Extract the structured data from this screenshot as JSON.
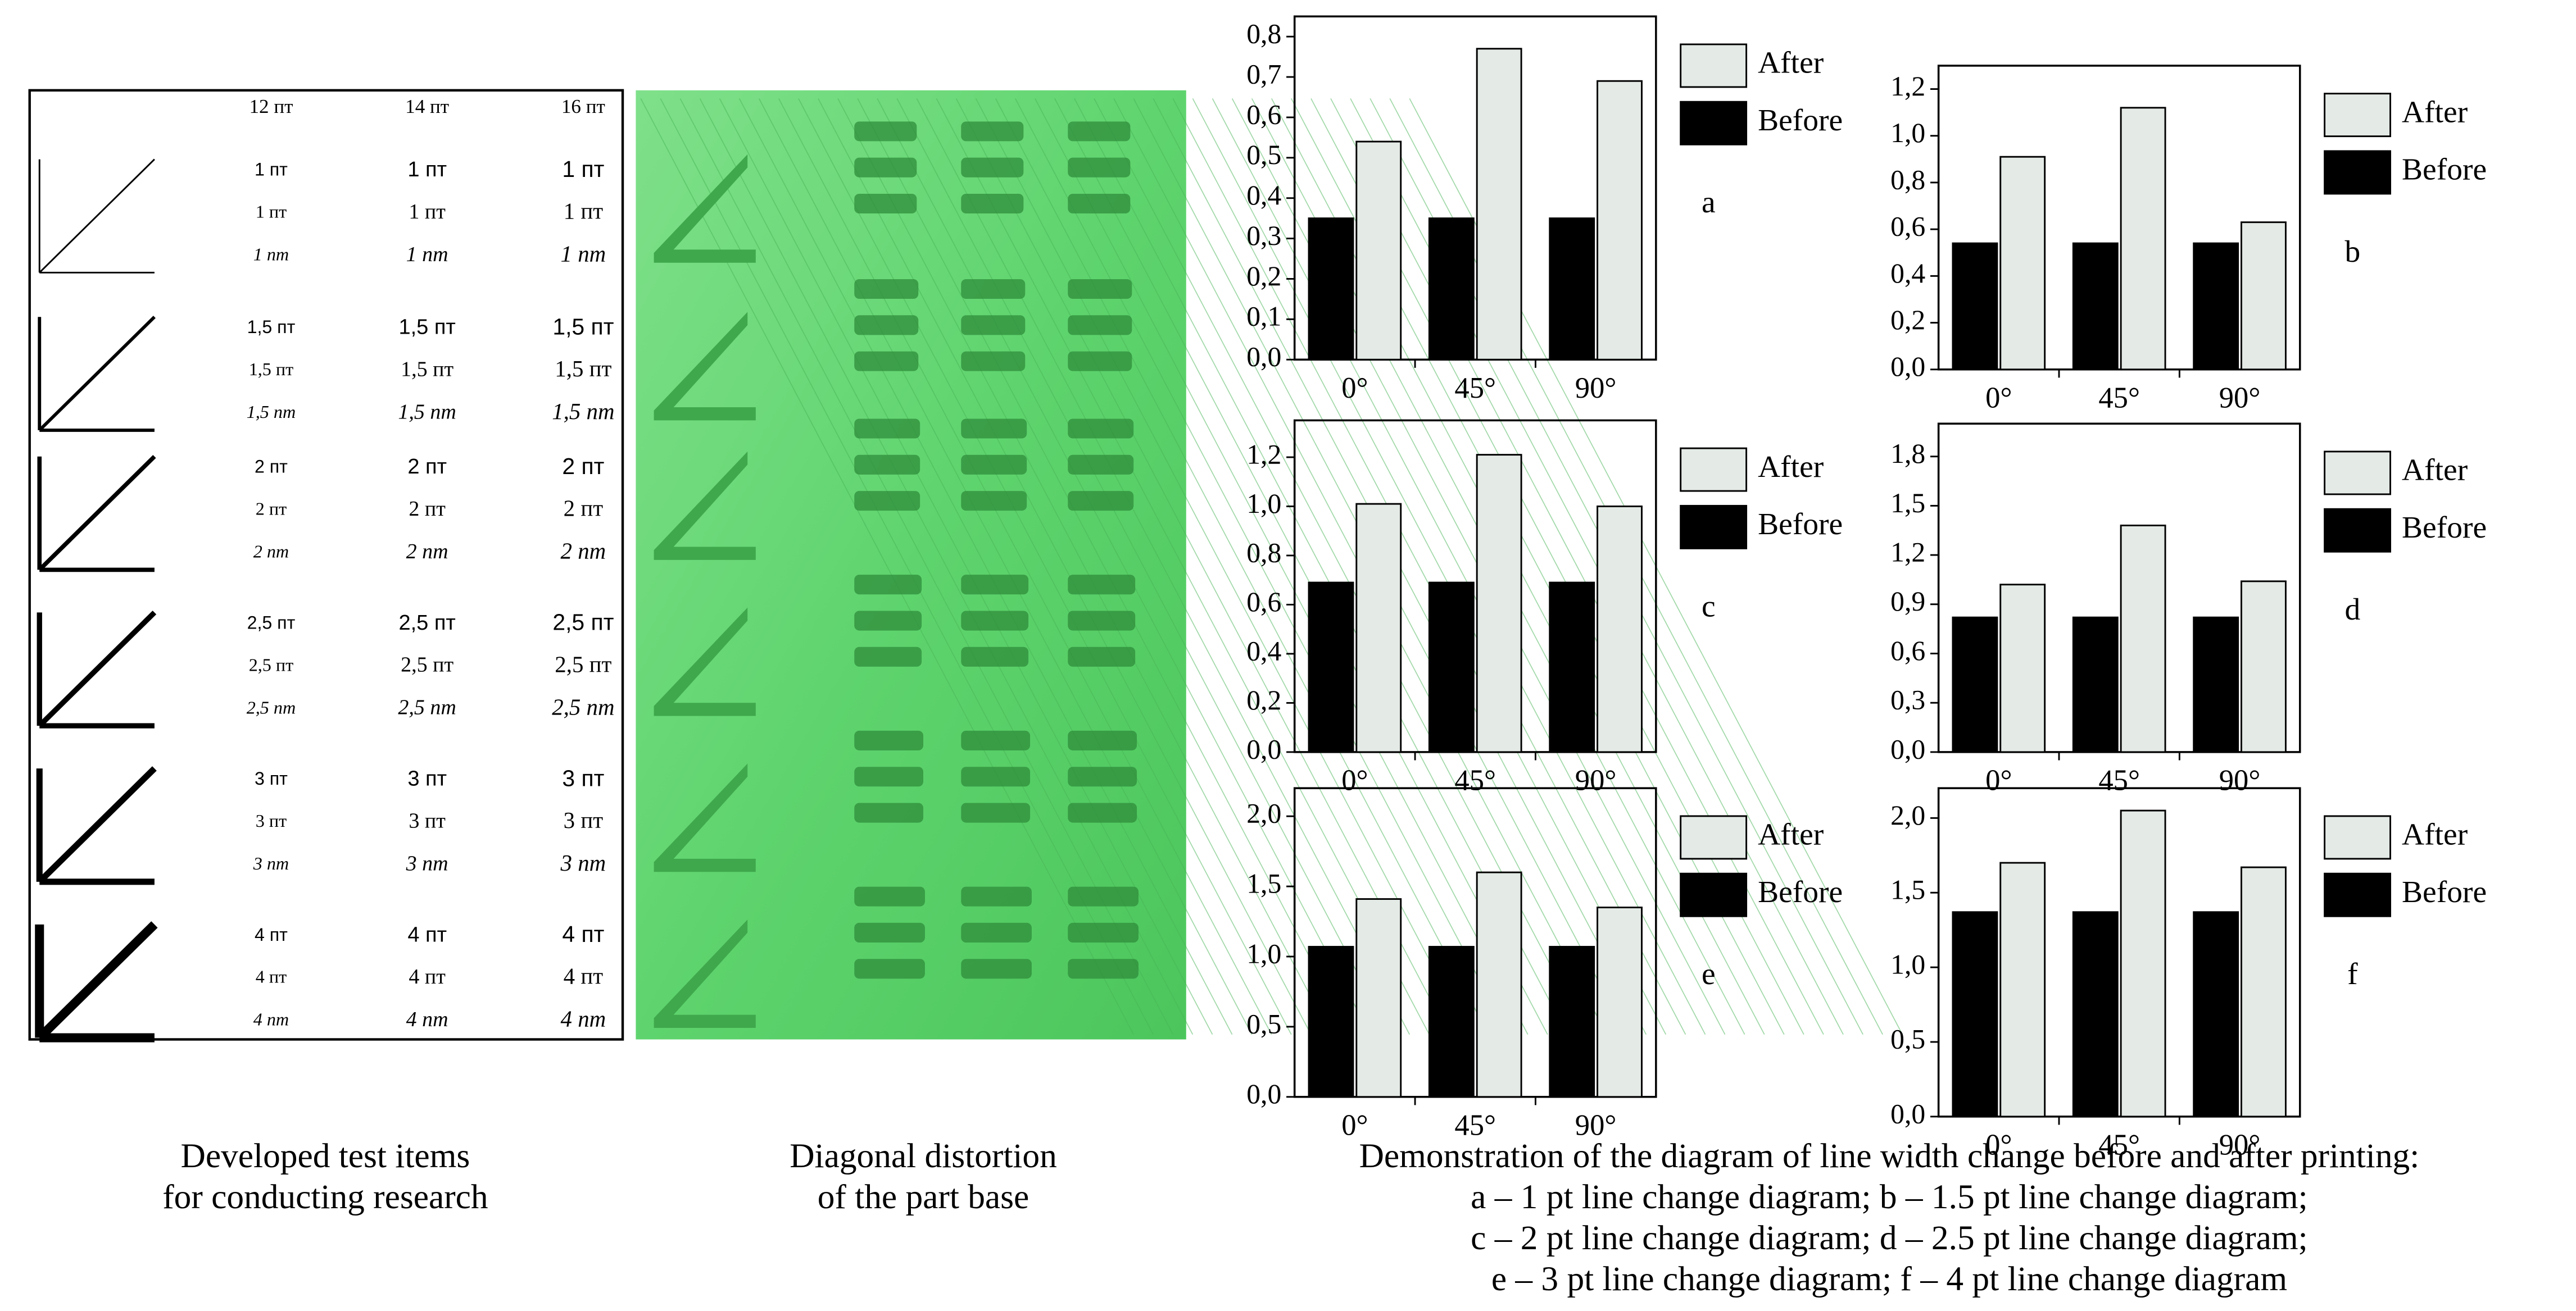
{
  "test_items": {
    "column_headers": [
      "12 пт",
      "14 пт",
      "16 пт"
    ],
    "rows": [
      [
        "1 пт",
        "1 пт",
        "1 nm"
      ],
      [
        "1,5 пт",
        "1,5 пт",
        "1,5 nm"
      ],
      [
        "2 пт",
        "2 пт",
        "2 nm"
      ],
      [
        "2,5 пт",
        "2,5 пт",
        "2,5 nm"
      ],
      [
        "3 пт",
        "3 пт",
        "3 nm"
      ],
      [
        "4 пт",
        "4 пт",
        "4 nm"
      ]
    ],
    "caption": [
      "Developed test items",
      "for conducting research"
    ]
  },
  "photo": {
    "caption": [
      "Diagonal distortion",
      "of the part base"
    ]
  },
  "chart_data": [
    {
      "type": "bar",
      "label": "a",
      "categories": [
        "0°",
        "45°",
        "90°"
      ],
      "series": [
        {
          "name": "After",
          "color": "#e4eae6",
          "values": [
            0.54,
            0.77,
            0.69
          ]
        },
        {
          "name": "Before",
          "color": "#000000",
          "values": [
            0.35,
            0.35,
            0.35
          ]
        }
      ],
      "ylim": [
        0,
        0.85
      ],
      "yticks": [
        {
          "value": 0,
          "label": "0,0"
        },
        {
          "value": 0.1,
          "label": "0,1"
        },
        {
          "value": 0.2,
          "label": "0,2"
        },
        {
          "value": 0.3,
          "label": "0,3"
        },
        {
          "value": 0.4,
          "label": "0,4"
        },
        {
          "value": 0.5,
          "label": "0,5"
        },
        {
          "value": 0.6,
          "label": "0,6"
        },
        {
          "value": 0.7,
          "label": "0,7"
        },
        {
          "value": 0.8,
          "label": "0,8"
        }
      ]
    },
    {
      "type": "bar",
      "label": "b",
      "categories": [
        "0°",
        "45°",
        "90°"
      ],
      "series": [
        {
          "name": "After",
          "color": "#e4eae6",
          "values": [
            0.91,
            1.12,
            0.63
          ]
        },
        {
          "name": "Before",
          "color": "#000000",
          "values": [
            0.54,
            0.54,
            0.54
          ]
        }
      ],
      "ylim": [
        0,
        1.3
      ],
      "yticks": [
        {
          "value": 0,
          "label": "0,0"
        },
        {
          "value": 0.2,
          "label": "0,2"
        },
        {
          "value": 0.4,
          "label": "0,4"
        },
        {
          "value": 0.6,
          "label": "0,6"
        },
        {
          "value": 0.8,
          "label": "0,8"
        },
        {
          "value": 1.0,
          "label": "1,0"
        },
        {
          "value": 1.2,
          "label": "1,2"
        }
      ]
    },
    {
      "type": "bar",
      "label": "c",
      "categories": [
        "0°",
        "45°",
        "90°"
      ],
      "series": [
        {
          "name": "After",
          "color": "#e4eae6",
          "values": [
            1.01,
            1.21,
            1.0
          ]
        },
        {
          "name": "Before",
          "color": "#000000",
          "values": [
            0.69,
            0.69,
            0.69
          ]
        }
      ],
      "ylim": [
        0,
        1.35
      ],
      "yticks": [
        {
          "value": 0,
          "label": "0,0"
        },
        {
          "value": 0.2,
          "label": "0,2"
        },
        {
          "value": 0.4,
          "label": "0,4"
        },
        {
          "value": 0.6,
          "label": "0,6"
        },
        {
          "value": 0.8,
          "label": "0,8"
        },
        {
          "value": 1.0,
          "label": "1,0"
        },
        {
          "value": 1.2,
          "label": "1,2"
        }
      ]
    },
    {
      "type": "bar",
      "label": "d",
      "categories": [
        "0°",
        "45°",
        "90°"
      ],
      "series": [
        {
          "name": "After",
          "color": "#e4eae6",
          "values": [
            1.02,
            1.38,
            1.04
          ]
        },
        {
          "name": "Before",
          "color": "#000000",
          "values": [
            0.82,
            0.82,
            0.82
          ]
        }
      ],
      "ylim": [
        0,
        2.0
      ],
      "yticks": [
        {
          "value": 0,
          "label": "0,0"
        },
        {
          "value": 0.3,
          "label": "0,3"
        },
        {
          "value": 0.6,
          "label": "0,6"
        },
        {
          "value": 0.9,
          "label": "0,9"
        },
        {
          "value": 1.2,
          "label": "1,2"
        },
        {
          "value": 1.5,
          "label": "1,5"
        },
        {
          "value": 1.8,
          "label": "1,8"
        }
      ]
    },
    {
      "type": "bar",
      "label": "e",
      "categories": [
        "0°",
        "45°",
        "90°"
      ],
      "series": [
        {
          "name": "After",
          "color": "#e4eae6",
          "values": [
            1.41,
            1.6,
            1.35
          ]
        },
        {
          "name": "Before",
          "color": "#000000",
          "values": [
            1.07,
            1.07,
            1.07
          ]
        }
      ],
      "ylim": [
        0,
        2.2
      ],
      "yticks": [
        {
          "value": 0,
          "label": "0,0"
        },
        {
          "value": 0.5,
          "label": "0,5"
        },
        {
          "value": 1.0,
          "label": "1,0"
        },
        {
          "value": 1.5,
          "label": "1,5"
        },
        {
          "value": 2.0,
          "label": "2,0"
        }
      ]
    },
    {
      "type": "bar",
      "label": "f",
      "categories": [
        "0°",
        "45°",
        "90°"
      ],
      "series": [
        {
          "name": "After",
          "color": "#e4eae6",
          "values": [
            1.7,
            2.05,
            1.67
          ]
        },
        {
          "name": "Before",
          "color": "#000000",
          "values": [
            1.37,
            1.37,
            1.37
          ]
        }
      ],
      "ylim": [
        0,
        2.2
      ],
      "yticks": [
        {
          "value": 0,
          "label": "0,0"
        },
        {
          "value": 0.5,
          "label": "0,5"
        },
        {
          "value": 1.0,
          "label": "1,0"
        },
        {
          "value": 1.5,
          "label": "1,5"
        },
        {
          "value": 2.0,
          "label": "2,0"
        }
      ]
    }
  ],
  "figure_caption": [
    "Demonstration of the diagram of line width change before and after printing:",
    "a – 1 pt line change diagram; b – 1.5 pt line change diagram;",
    "c – 2 pt line change diagram; d – 2.5 pt line change diagram;",
    "e – 3 pt line change diagram; f – 4 pt line change diagram"
  ]
}
